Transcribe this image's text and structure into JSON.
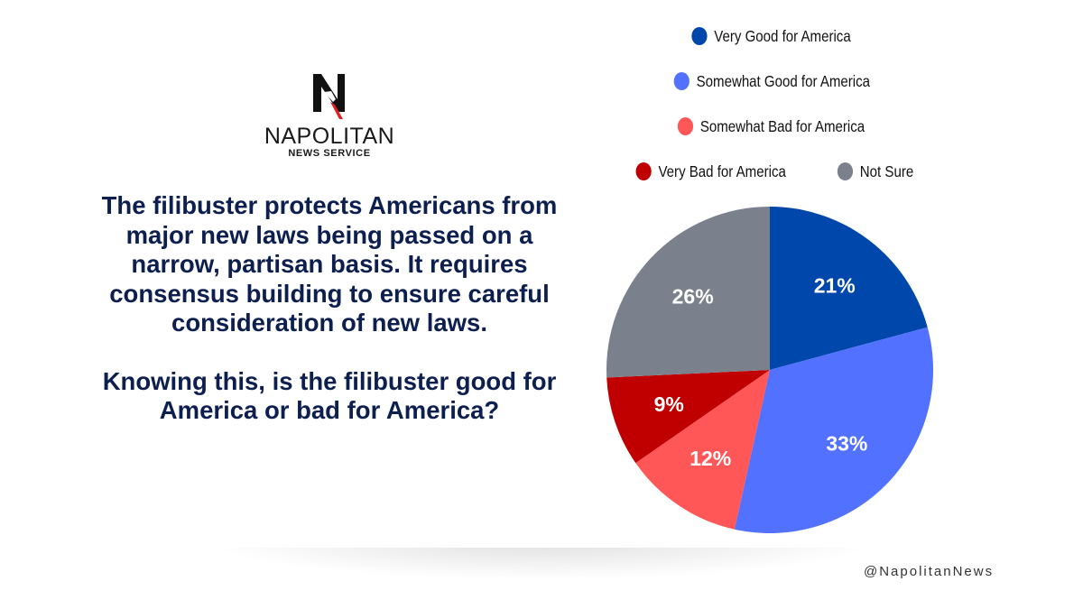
{
  "logo": {
    "brand": "NAPOLITAN",
    "sub": "NEWS SERVICE"
  },
  "question": {
    "statement": "The filibuster protects Americans from major new laws being passed on a narrow, partisan basis. It requires consensus building to ensure careful consideration of new laws.",
    "prompt": "Knowing this, is the filibuster good for America or bad for America?"
  },
  "handle": "@NapolitanNews",
  "chart_data": {
    "type": "pie",
    "title": "",
    "start_angle": "12 o'clock, clockwise",
    "legend_position": "top",
    "slices": [
      {
        "label": "Very Good for America",
        "value": 21,
        "display": "21%",
        "color": "#0047ab"
      },
      {
        "label": "Somewhat Good for America",
        "value": 33,
        "display": "33%",
        "color": "#5271ff"
      },
      {
        "label": "Somewhat Bad for America",
        "value": 12,
        "display": "12%",
        "color": "#ff5757"
      },
      {
        "label": "Very Bad for America",
        "value": 9,
        "display": "9%",
        "color": "#c00000"
      },
      {
        "label": "Not Sure",
        "value": 26,
        "display": "26%",
        "color": "#7b818c"
      }
    ]
  }
}
